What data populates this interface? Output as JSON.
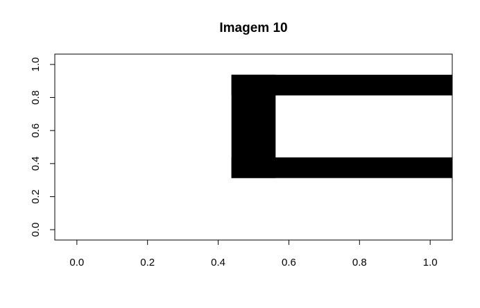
{
  "chart_data": {
    "type": "heatmap",
    "title": "Imagem 10",
    "xlabel": "",
    "ylabel": "",
    "xlim": [
      -0.0625,
      1.0625
    ],
    "ylim": [
      -0.0625,
      1.0625
    ],
    "x_ticks": [
      0.0,
      0.2,
      0.4,
      0.6,
      0.8,
      1.0
    ],
    "x_tick_labels": [
      "0.0",
      "0.2",
      "0.4",
      "0.6",
      "0.8",
      "1.0"
    ],
    "y_ticks": [
      0.0,
      0.2,
      0.4,
      0.6,
      0.8,
      1.0
    ],
    "y_tick_labels": [
      "0.0",
      "0.2",
      "0.4",
      "0.6",
      "0.8",
      "1.0"
    ],
    "grid": false,
    "colors": {
      "filled": "#000000",
      "empty": "#ffffff"
    },
    "black_regions": [
      {
        "name": "top-bar",
        "x": [
          0.4375,
          1.0625
        ],
        "y": [
          0.8125,
          0.9375
        ]
      },
      {
        "name": "bottom-bar",
        "x": [
          0.4375,
          1.0625
        ],
        "y": [
          0.3125,
          0.4375
        ]
      },
      {
        "name": "left-bar",
        "x": [
          0.4375,
          0.5625
        ],
        "y": [
          0.3125,
          0.9375
        ]
      }
    ]
  }
}
